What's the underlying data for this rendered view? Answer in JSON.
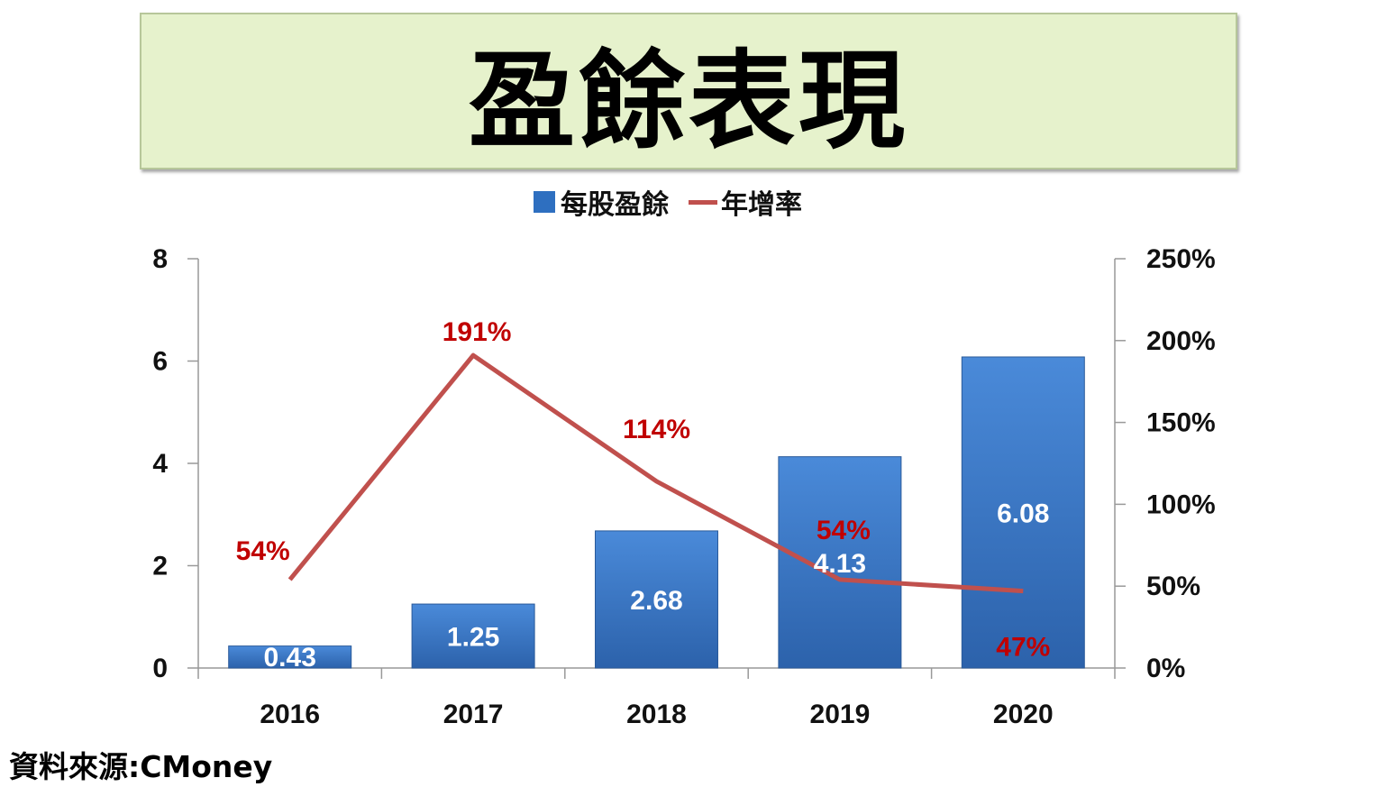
{
  "title": "盈餘表現",
  "source": "資料來源:CMoney",
  "chart_data": {
    "type": "bar+line",
    "categories": [
      "2016",
      "2017",
      "2018",
      "2019",
      "2020"
    ],
    "series": [
      {
        "name": "每股盈餘",
        "type": "bar",
        "axis": "left",
        "color": "#2e6fc0",
        "values": [
          0.43,
          1.25,
          2.68,
          4.13,
          6.08
        ],
        "labels": [
          "0.43",
          "1.25",
          "2.68",
          "4.13",
          "6.08"
        ]
      },
      {
        "name": "年增率",
        "type": "line",
        "axis": "right",
        "color": "#c0504d",
        "values": [
          54,
          191,
          114,
          54,
          47
        ],
        "labels": [
          "54%",
          "191%",
          "114%",
          "54%",
          "47%"
        ]
      }
    ],
    "y_left": {
      "min": 0,
      "max": 8,
      "ticks": [
        "0",
        "2",
        "4",
        "6",
        "8"
      ]
    },
    "y_right": {
      "min": 0,
      "max": 250,
      "ticks": [
        "0%",
        "50%",
        "100%",
        "150%",
        "200%",
        "250%"
      ]
    },
    "legend": "top",
    "grid": false
  }
}
